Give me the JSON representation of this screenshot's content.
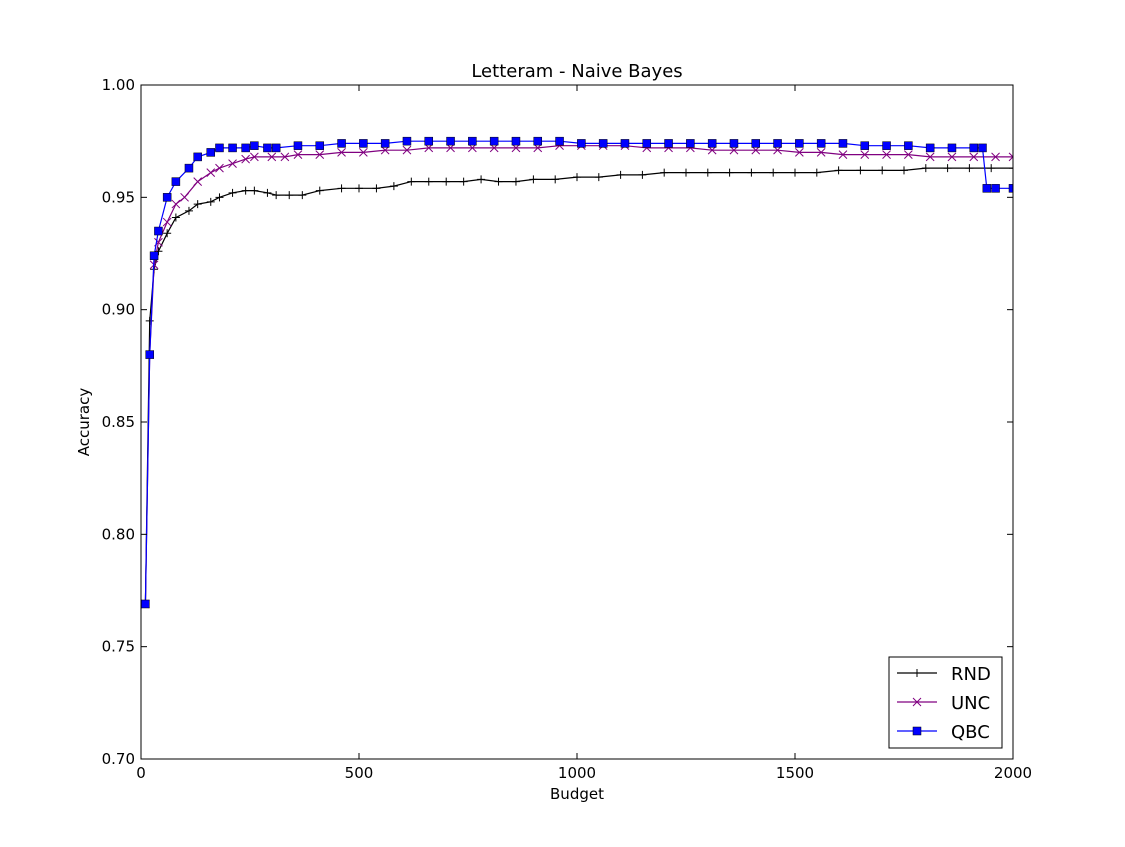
{
  "chart_data": {
    "type": "line",
    "title": "Letteram - Naive Bayes",
    "xlabel": "Budget",
    "ylabel": "Accuracy",
    "xlim": [
      0,
      2000
    ],
    "ylim": [
      0.7,
      1.0
    ],
    "xticks": [
      0,
      500,
      1000,
      1500,
      2000
    ],
    "yticks": [
      0.7,
      0.75,
      0.8,
      0.85,
      0.9,
      0.95,
      1.0
    ],
    "xtick_labels": [
      "0",
      "500",
      "1000",
      "1500",
      "2000"
    ],
    "ytick_labels": [
      "0.70",
      "0.75",
      "0.80",
      "0.85",
      "0.90",
      "0.95",
      "1.00"
    ],
    "grid": false,
    "legend_position": "bottom-right",
    "series": [
      {
        "name": "RND",
        "color": "#000000",
        "marker": "plus",
        "x": [
          10,
          20,
          30,
          40,
          60,
          80,
          110,
          130,
          160,
          180,
          210,
          240,
          260,
          290,
          310,
          340,
          370,
          410,
          460,
          500,
          540,
          580,
          620,
          660,
          700,
          740,
          780,
          820,
          860,
          900,
          950,
          1000,
          1050,
          1100,
          1150,
          1200,
          1250,
          1300,
          1350,
          1400,
          1450,
          1500,
          1550,
          1600,
          1650,
          1700,
          1750,
          1800,
          1850,
          1900,
          1950,
          2000
        ],
        "y": [
          0.769,
          0.895,
          0.918,
          0.926,
          0.934,
          0.941,
          0.944,
          0.947,
          0.948,
          0.95,
          0.952,
          0.953,
          0.953,
          0.952,
          0.951,
          0.951,
          0.951,
          0.953,
          0.954,
          0.954,
          0.954,
          0.955,
          0.957,
          0.957,
          0.957,
          0.957,
          0.958,
          0.957,
          0.957,
          0.958,
          0.958,
          0.959,
          0.959,
          0.96,
          0.96,
          0.961,
          0.961,
          0.961,
          0.961,
          0.961,
          0.961,
          0.961,
          0.961,
          0.962,
          0.962,
          0.962,
          0.962,
          0.963,
          0.963,
          0.963,
          0.963,
          0.963
        ]
      },
      {
        "name": "UNC",
        "color": "#800080",
        "marker": "x",
        "x": [
          10,
          20,
          30,
          40,
          60,
          80,
          100,
          130,
          160,
          180,
          210,
          240,
          260,
          300,
          330,
          360,
          410,
          460,
          510,
          560,
          610,
          660,
          710,
          760,
          810,
          860,
          910,
          960,
          1010,
          1060,
          1110,
          1160,
          1210,
          1260,
          1310,
          1360,
          1410,
          1460,
          1510,
          1560,
          1610,
          1660,
          1710,
          1760,
          1810,
          1860,
          1910,
          1960,
          2000
        ],
        "y": [
          0.769,
          0.88,
          0.92,
          0.93,
          0.939,
          0.947,
          0.95,
          0.957,
          0.961,
          0.963,
          0.965,
          0.967,
          0.968,
          0.968,
          0.968,
          0.969,
          0.969,
          0.97,
          0.97,
          0.971,
          0.971,
          0.972,
          0.972,
          0.972,
          0.972,
          0.972,
          0.972,
          0.973,
          0.973,
          0.973,
          0.973,
          0.972,
          0.972,
          0.972,
          0.971,
          0.971,
          0.971,
          0.971,
          0.97,
          0.97,
          0.969,
          0.969,
          0.969,
          0.969,
          0.968,
          0.968,
          0.968,
          0.968,
          0.968
        ]
      },
      {
        "name": "QBC",
        "color": "#0000ff",
        "marker": "square",
        "x": [
          10,
          20,
          30,
          40,
          60,
          80,
          110,
          130,
          160,
          180,
          210,
          240,
          260,
          290,
          310,
          360,
          410,
          460,
          510,
          560,
          610,
          660,
          710,
          760,
          810,
          860,
          910,
          960,
          1010,
          1060,
          1110,
          1160,
          1210,
          1260,
          1310,
          1360,
          1410,
          1460,
          1510,
          1560,
          1610,
          1660,
          1710,
          1760,
          1810,
          1860,
          1910,
          1930,
          1940,
          1960,
          2000
        ],
        "y": [
          0.769,
          0.88,
          0.924,
          0.935,
          0.95,
          0.957,
          0.963,
          0.968,
          0.97,
          0.972,
          0.972,
          0.972,
          0.973,
          0.972,
          0.972,
          0.973,
          0.973,
          0.974,
          0.974,
          0.974,
          0.975,
          0.975,
          0.975,
          0.975,
          0.975,
          0.975,
          0.975,
          0.975,
          0.974,
          0.974,
          0.974,
          0.974,
          0.974,
          0.974,
          0.974,
          0.974,
          0.974,
          0.974,
          0.974,
          0.974,
          0.974,
          0.973,
          0.973,
          0.973,
          0.972,
          0.972,
          0.972,
          0.972,
          0.954,
          0.954,
          0.954
        ]
      }
    ]
  }
}
